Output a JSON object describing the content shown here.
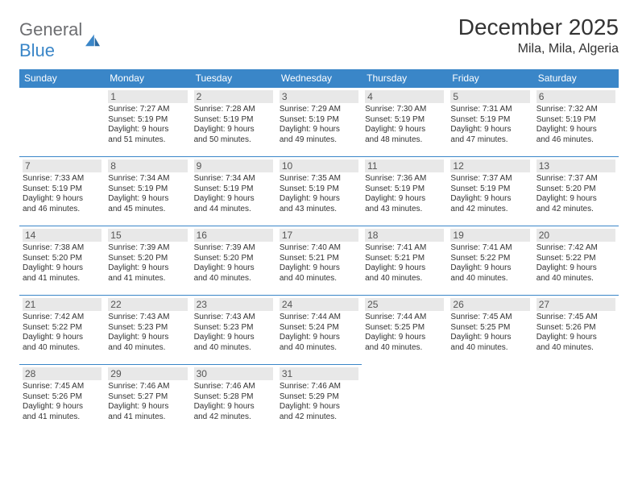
{
  "logo": {
    "text1": "General",
    "text2": "Blue"
  },
  "title": "December 2025",
  "location": "Mila, Mila, Algeria",
  "colors": {
    "header_bg": "#3a86c8",
    "header_text": "#ffffff",
    "border": "#3a86c8",
    "daynum_bg": "#e8e8e8",
    "body_text": "#333333",
    "logo_gray": "#6d6e71",
    "logo_blue": "#3a86c8"
  },
  "weekdays": [
    "Sunday",
    "Monday",
    "Tuesday",
    "Wednesday",
    "Thursday",
    "Friday",
    "Saturday"
  ],
  "weeks": [
    [
      null,
      {
        "n": "1",
        "sr": "Sunrise: 7:27 AM",
        "ss": "Sunset: 5:19 PM",
        "d1": "Daylight: 9 hours",
        "d2": "and 51 minutes."
      },
      {
        "n": "2",
        "sr": "Sunrise: 7:28 AM",
        "ss": "Sunset: 5:19 PM",
        "d1": "Daylight: 9 hours",
        "d2": "and 50 minutes."
      },
      {
        "n": "3",
        "sr": "Sunrise: 7:29 AM",
        "ss": "Sunset: 5:19 PM",
        "d1": "Daylight: 9 hours",
        "d2": "and 49 minutes."
      },
      {
        "n": "4",
        "sr": "Sunrise: 7:30 AM",
        "ss": "Sunset: 5:19 PM",
        "d1": "Daylight: 9 hours",
        "d2": "and 48 minutes."
      },
      {
        "n": "5",
        "sr": "Sunrise: 7:31 AM",
        "ss": "Sunset: 5:19 PM",
        "d1": "Daylight: 9 hours",
        "d2": "and 47 minutes."
      },
      {
        "n": "6",
        "sr": "Sunrise: 7:32 AM",
        "ss": "Sunset: 5:19 PM",
        "d1": "Daylight: 9 hours",
        "d2": "and 46 minutes."
      }
    ],
    [
      {
        "n": "7",
        "sr": "Sunrise: 7:33 AM",
        "ss": "Sunset: 5:19 PM",
        "d1": "Daylight: 9 hours",
        "d2": "and 46 minutes."
      },
      {
        "n": "8",
        "sr": "Sunrise: 7:34 AM",
        "ss": "Sunset: 5:19 PM",
        "d1": "Daylight: 9 hours",
        "d2": "and 45 minutes."
      },
      {
        "n": "9",
        "sr": "Sunrise: 7:34 AM",
        "ss": "Sunset: 5:19 PM",
        "d1": "Daylight: 9 hours",
        "d2": "and 44 minutes."
      },
      {
        "n": "10",
        "sr": "Sunrise: 7:35 AM",
        "ss": "Sunset: 5:19 PM",
        "d1": "Daylight: 9 hours",
        "d2": "and 43 minutes."
      },
      {
        "n": "11",
        "sr": "Sunrise: 7:36 AM",
        "ss": "Sunset: 5:19 PM",
        "d1": "Daylight: 9 hours",
        "d2": "and 43 minutes."
      },
      {
        "n": "12",
        "sr": "Sunrise: 7:37 AM",
        "ss": "Sunset: 5:19 PM",
        "d1": "Daylight: 9 hours",
        "d2": "and 42 minutes."
      },
      {
        "n": "13",
        "sr": "Sunrise: 7:37 AM",
        "ss": "Sunset: 5:20 PM",
        "d1": "Daylight: 9 hours",
        "d2": "and 42 minutes."
      }
    ],
    [
      {
        "n": "14",
        "sr": "Sunrise: 7:38 AM",
        "ss": "Sunset: 5:20 PM",
        "d1": "Daylight: 9 hours",
        "d2": "and 41 minutes."
      },
      {
        "n": "15",
        "sr": "Sunrise: 7:39 AM",
        "ss": "Sunset: 5:20 PM",
        "d1": "Daylight: 9 hours",
        "d2": "and 41 minutes."
      },
      {
        "n": "16",
        "sr": "Sunrise: 7:39 AM",
        "ss": "Sunset: 5:20 PM",
        "d1": "Daylight: 9 hours",
        "d2": "and 40 minutes."
      },
      {
        "n": "17",
        "sr": "Sunrise: 7:40 AM",
        "ss": "Sunset: 5:21 PM",
        "d1": "Daylight: 9 hours",
        "d2": "and 40 minutes."
      },
      {
        "n": "18",
        "sr": "Sunrise: 7:41 AM",
        "ss": "Sunset: 5:21 PM",
        "d1": "Daylight: 9 hours",
        "d2": "and 40 minutes."
      },
      {
        "n": "19",
        "sr": "Sunrise: 7:41 AM",
        "ss": "Sunset: 5:22 PM",
        "d1": "Daylight: 9 hours",
        "d2": "and 40 minutes."
      },
      {
        "n": "20",
        "sr": "Sunrise: 7:42 AM",
        "ss": "Sunset: 5:22 PM",
        "d1": "Daylight: 9 hours",
        "d2": "and 40 minutes."
      }
    ],
    [
      {
        "n": "21",
        "sr": "Sunrise: 7:42 AM",
        "ss": "Sunset: 5:22 PM",
        "d1": "Daylight: 9 hours",
        "d2": "and 40 minutes."
      },
      {
        "n": "22",
        "sr": "Sunrise: 7:43 AM",
        "ss": "Sunset: 5:23 PM",
        "d1": "Daylight: 9 hours",
        "d2": "and 40 minutes."
      },
      {
        "n": "23",
        "sr": "Sunrise: 7:43 AM",
        "ss": "Sunset: 5:23 PM",
        "d1": "Daylight: 9 hours",
        "d2": "and 40 minutes."
      },
      {
        "n": "24",
        "sr": "Sunrise: 7:44 AM",
        "ss": "Sunset: 5:24 PM",
        "d1": "Daylight: 9 hours",
        "d2": "and 40 minutes."
      },
      {
        "n": "25",
        "sr": "Sunrise: 7:44 AM",
        "ss": "Sunset: 5:25 PM",
        "d1": "Daylight: 9 hours",
        "d2": "and 40 minutes."
      },
      {
        "n": "26",
        "sr": "Sunrise: 7:45 AM",
        "ss": "Sunset: 5:25 PM",
        "d1": "Daylight: 9 hours",
        "d2": "and 40 minutes."
      },
      {
        "n": "27",
        "sr": "Sunrise: 7:45 AM",
        "ss": "Sunset: 5:26 PM",
        "d1": "Daylight: 9 hours",
        "d2": "and 40 minutes."
      }
    ],
    [
      {
        "n": "28",
        "sr": "Sunrise: 7:45 AM",
        "ss": "Sunset: 5:26 PM",
        "d1": "Daylight: 9 hours",
        "d2": "and 41 minutes."
      },
      {
        "n": "29",
        "sr": "Sunrise: 7:46 AM",
        "ss": "Sunset: 5:27 PM",
        "d1": "Daylight: 9 hours",
        "d2": "and 41 minutes."
      },
      {
        "n": "30",
        "sr": "Sunrise: 7:46 AM",
        "ss": "Sunset: 5:28 PM",
        "d1": "Daylight: 9 hours",
        "d2": "and 42 minutes."
      },
      {
        "n": "31",
        "sr": "Sunrise: 7:46 AM",
        "ss": "Sunset: 5:29 PM",
        "d1": "Daylight: 9 hours",
        "d2": "and 42 minutes."
      },
      null,
      null,
      null
    ]
  ]
}
